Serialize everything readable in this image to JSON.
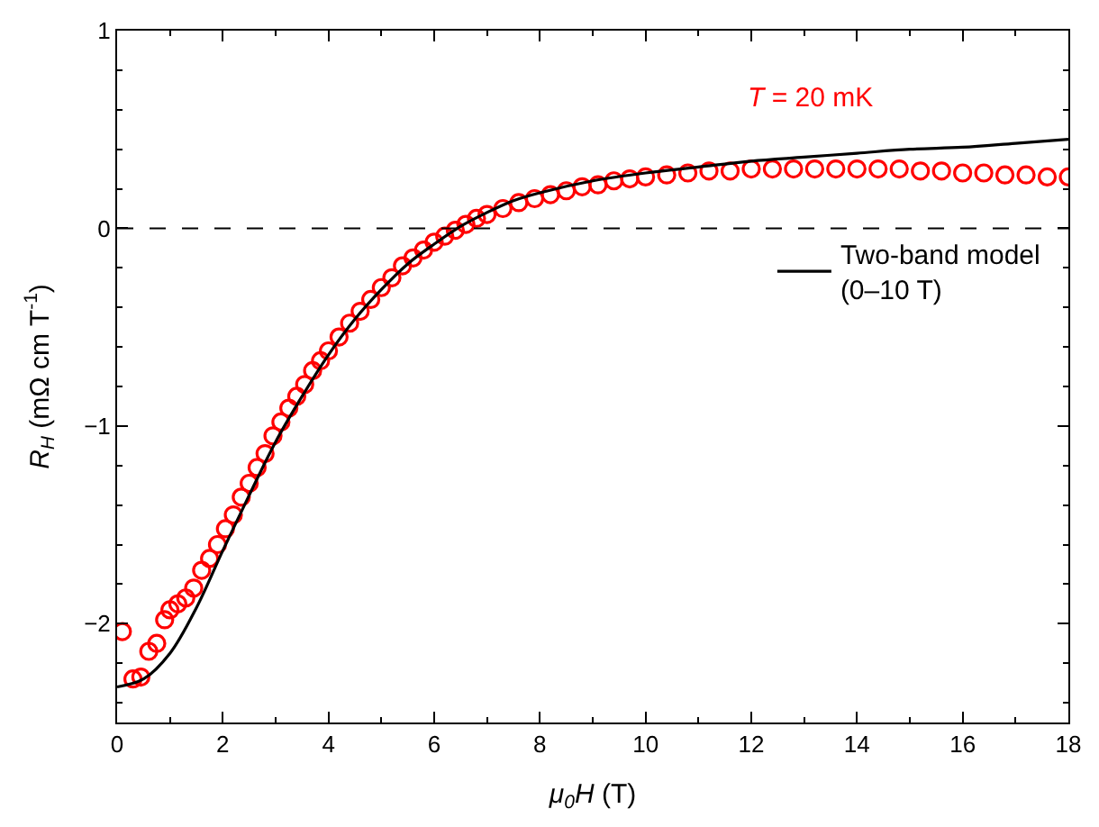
{
  "chart_data": {
    "type": "scatter",
    "xlabel": "μ$_{0}$H (T)",
    "ylabel": "R$_{H}$ (mΩ cm T$^{-1}$)",
    "annotations": [
      "T = 20 mK"
    ],
    "xlim": [
      0,
      18
    ],
    "xticks": [
      0,
      2,
      4,
      6,
      8,
      10,
      12,
      14,
      16,
      18
    ],
    "ylim": [
      -2.5,
      1
    ],
    "yticks": [
      -2,
      -1,
      0,
      1
    ],
    "legend": "right",
    "ref_lines": [
      {
        "axis": "y",
        "value": 0,
        "line_style": "dashed",
        "color": "#000000"
      }
    ],
    "series": [
      {
        "color": "#ff0000",
        "marker": "circle",
        "x": [
          0.1,
          0.3,
          0.45,
          0.6,
          0.75,
          0.9,
          1.0,
          1.15,
          1.3,
          1.45,
          1.6,
          1.75,
          1.9,
          2.05,
          2.2,
          2.35,
          2.5,
          2.65,
          2.8,
          2.95,
          3.1,
          3.25,
          3.4,
          3.55,
          3.7,
          3.85,
          4.0,
          4.2,
          4.4,
          4.6,
          4.8,
          5.0,
          5.2,
          5.4,
          5.6,
          5.8,
          6.0,
          6.2,
          6.4,
          6.6,
          6.8,
          7.0,
          7.3,
          7.6,
          7.9,
          8.2,
          8.5,
          8.8,
          9.1,
          9.4,
          9.7,
          10.0,
          10.4,
          10.8,
          11.2,
          11.6,
          12.0,
          12.4,
          12.8,
          13.2,
          13.6,
          14.0,
          14.4,
          14.8,
          15.2,
          15.6,
          16.0,
          16.4,
          16.8,
          17.2,
          17.6,
          18.0
        ],
        "values": [
          -2.04,
          -2.28,
          -2.27,
          -2.14,
          -2.1,
          -1.98,
          -1.93,
          -1.9,
          -1.87,
          -1.82,
          -1.73,
          -1.67,
          -1.6,
          -1.52,
          -1.45,
          -1.36,
          -1.29,
          -1.21,
          -1.14,
          -1.05,
          -0.98,
          -0.91,
          -0.85,
          -0.79,
          -0.72,
          -0.67,
          -0.62,
          -0.55,
          -0.48,
          -0.42,
          -0.36,
          -0.3,
          -0.25,
          -0.19,
          -0.15,
          -0.11,
          -0.07,
          -0.04,
          -0.01,
          0.02,
          0.05,
          0.07,
          0.1,
          0.13,
          0.15,
          0.17,
          0.19,
          0.21,
          0.22,
          0.24,
          0.25,
          0.26,
          0.27,
          0.28,
          0.29,
          0.29,
          0.3,
          0.3,
          0.3,
          0.3,
          0.3,
          0.3,
          0.3,
          0.3,
          0.29,
          0.29,
          0.28,
          0.28,
          0.27,
          0.27,
          0.26,
          0.26
        ]
      },
      {
        "type": "line",
        "name": "Two-band model\n(0–10 T)",
        "color": "#000000",
        "marker": "none",
        "line_style": "solid",
        "x": [
          0,
          0.5,
          1,
          1.5,
          2,
          2.5,
          3,
          3.5,
          4,
          4.5,
          5,
          5.5,
          6,
          6.5,
          7,
          7.5,
          8,
          9,
          10,
          11,
          12,
          13,
          14,
          15,
          16,
          17,
          18
        ],
        "values": [
          -2.32,
          -2.28,
          -2.15,
          -1.92,
          -1.63,
          -1.35,
          -1.08,
          -0.85,
          -0.64,
          -0.46,
          -0.31,
          -0.18,
          -0.08,
          0.01,
          0.08,
          0.14,
          0.18,
          0.24,
          0.28,
          0.31,
          0.34,
          0.36,
          0.38,
          0.4,
          0.41,
          0.43,
          0.45
        ]
      }
    ]
  }
}
